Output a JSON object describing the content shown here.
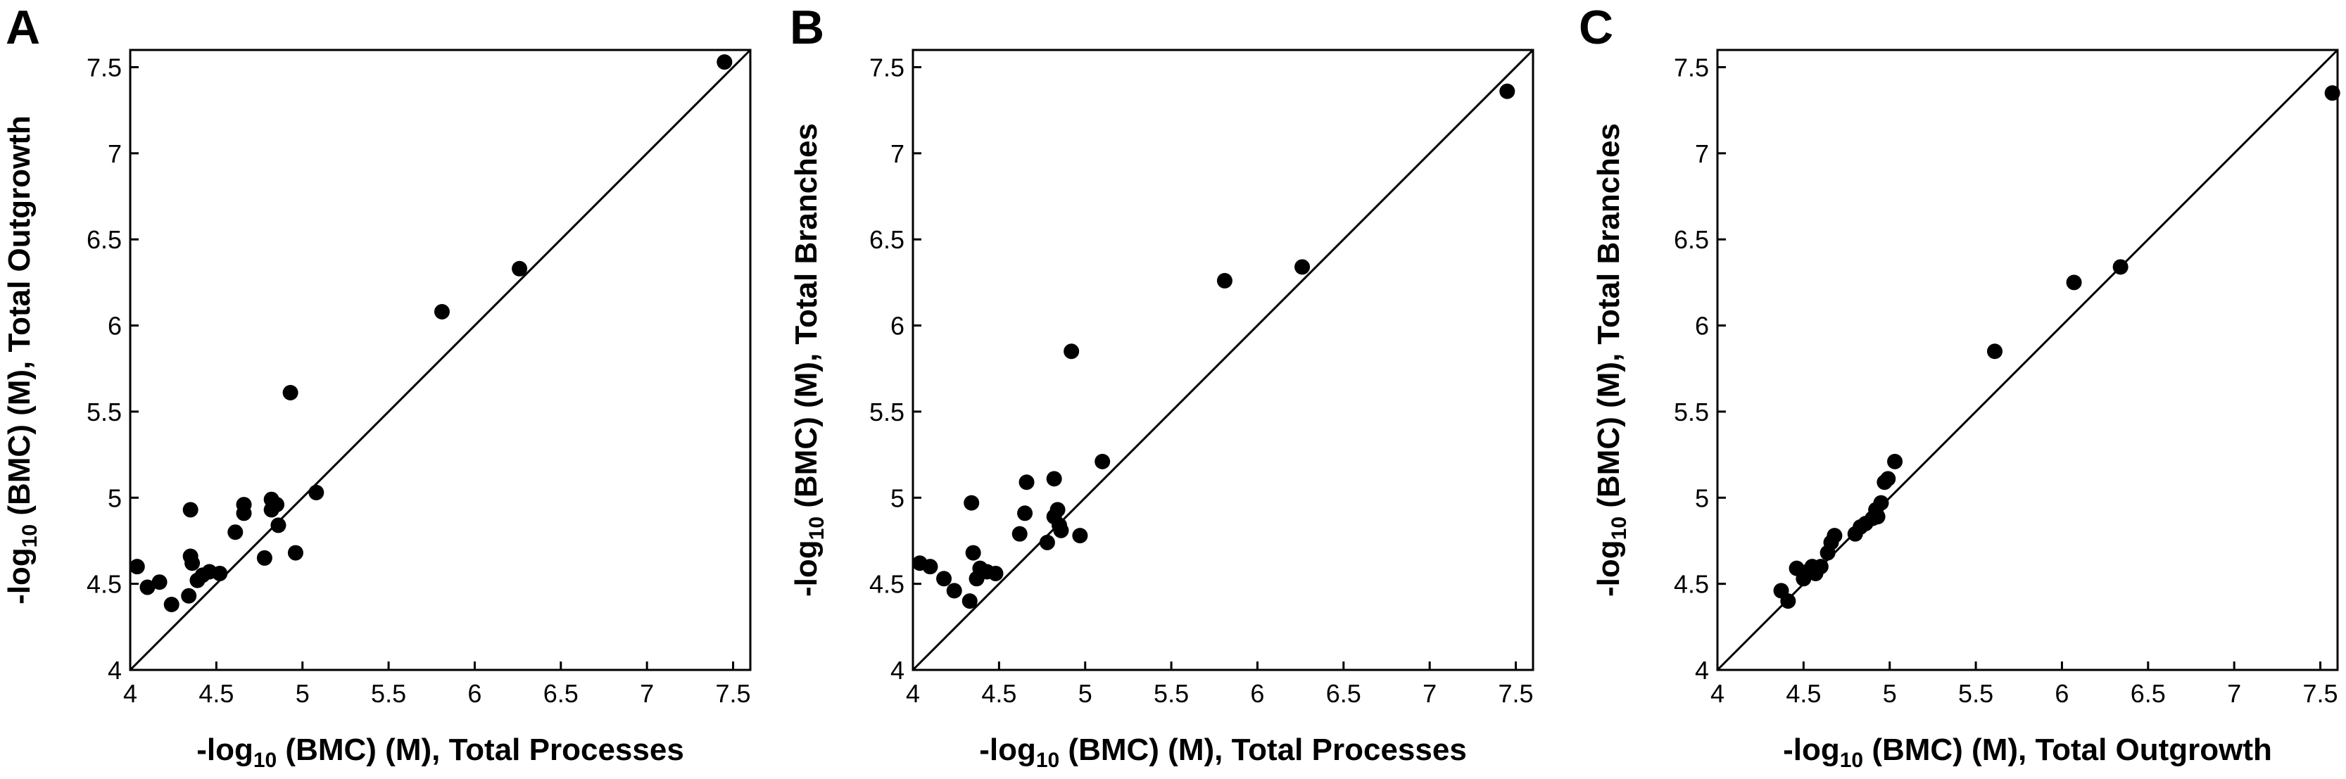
{
  "chart_data": [
    {
      "type": "scatter",
      "panel": "A",
      "xlabel_prefix": "-log",
      "xlabel_sub": "10",
      "xlabel_suffix": " (BMC) (M), Total Processes",
      "ylabel_prefix": "-log",
      "ylabel_sub": "10",
      "ylabel_suffix": " (BMC) (M), Total Outgrowth",
      "xlim": [
        4,
        7.6
      ],
      "ylim": [
        4,
        7.6
      ],
      "xticks": [
        4,
        4.5,
        5,
        5.5,
        6,
        6.5,
        7,
        7.5
      ],
      "xtick_labels": [
        "4",
        "4.5",
        "5",
        "5.5",
        "6",
        "6.5",
        "7",
        "7.5"
      ],
      "yticks": [
        4,
        4.5,
        5,
        5.5,
        6,
        6.5,
        7,
        7.5
      ],
      "ytick_labels": [
        "4",
        "4.5",
        "5",
        "5.5",
        "6",
        "6.5",
        "7",
        "7.5"
      ],
      "reference_line": "y = x",
      "grid": false,
      "points": [
        [
          4.04,
          4.6
        ],
        [
          4.1,
          4.48
        ],
        [
          4.17,
          4.51
        ],
        [
          4.24,
          4.38
        ],
        [
          4.34,
          4.43
        ],
        [
          4.35,
          4.66
        ],
        [
          4.36,
          4.62
        ],
        [
          4.35,
          4.93
        ],
        [
          4.39,
          4.52
        ],
        [
          4.42,
          4.55
        ],
        [
          4.46,
          4.57
        ],
        [
          4.52,
          4.56
        ],
        [
          4.61,
          4.8
        ],
        [
          4.66,
          4.91
        ],
        [
          4.66,
          4.96
        ],
        [
          4.78,
          4.65
        ],
        [
          4.82,
          4.93
        ],
        [
          4.82,
          4.99
        ],
        [
          4.85,
          4.96
        ],
        [
          4.86,
          4.84
        ],
        [
          4.96,
          4.68
        ],
        [
          4.93,
          5.61
        ],
        [
          5.08,
          5.03
        ],
        [
          5.81,
          6.08
        ],
        [
          6.26,
          6.33
        ],
        [
          7.45,
          7.53
        ]
      ]
    },
    {
      "type": "scatter",
      "panel": "B",
      "xlabel_prefix": "-log",
      "xlabel_sub": "10",
      "xlabel_suffix": " (BMC) (M), Total Processes",
      "ylabel_prefix": "-log",
      "ylabel_sub": "10",
      "ylabel_suffix": " (BMC) (M), Total Branches",
      "xlim": [
        4,
        7.6
      ],
      "ylim": [
        4,
        7.6
      ],
      "xticks": [
        4,
        4.5,
        5,
        5.5,
        6,
        6.5,
        7,
        7.5
      ],
      "xtick_labels": [
        "4",
        "4.5",
        "5",
        "5.5",
        "6",
        "6.5",
        "7",
        "7.5"
      ],
      "yticks": [
        4,
        4.5,
        5,
        5.5,
        6,
        6.5,
        7,
        7.5
      ],
      "ytick_labels": [
        "4",
        "4.5",
        "5",
        "5.5",
        "6",
        "6.5",
        "7",
        "7.5"
      ],
      "reference_line": "y = x",
      "grid": false,
      "points": [
        [
          4.04,
          4.62
        ],
        [
          4.1,
          4.6
        ],
        [
          4.18,
          4.53
        ],
        [
          4.24,
          4.46
        ],
        [
          4.33,
          4.4
        ],
        [
          4.34,
          4.97
        ],
        [
          4.35,
          4.68
        ],
        [
          4.37,
          4.53
        ],
        [
          4.39,
          4.59
        ],
        [
          4.43,
          4.57
        ],
        [
          4.48,
          4.56
        ],
        [
          4.62,
          4.79
        ],
        [
          4.65,
          4.91
        ],
        [
          4.66,
          5.09
        ],
        [
          4.78,
          4.74
        ],
        [
          4.82,
          4.89
        ],
        [
          4.82,
          5.11
        ],
        [
          4.84,
          4.93
        ],
        [
          4.85,
          4.84
        ],
        [
          4.86,
          4.81
        ],
        [
          4.97,
          4.78
        ],
        [
          4.92,
          5.85
        ],
        [
          5.1,
          5.21
        ],
        [
          5.81,
          6.26
        ],
        [
          6.26,
          6.34
        ],
        [
          7.45,
          7.36
        ]
      ]
    },
    {
      "type": "scatter",
      "panel": "C",
      "xlabel_prefix": "-log",
      "xlabel_sub": "10",
      "xlabel_suffix": " (BMC) (M), Total Outgrowth",
      "ylabel_prefix": "-log",
      "ylabel_sub": "10",
      "ylabel_suffix": " (BMC) (M), Total Branches",
      "xlim": [
        4,
        7.6
      ],
      "ylim": [
        4,
        7.6
      ],
      "xticks": [
        4,
        4.5,
        5,
        5.5,
        6,
        6.5,
        7,
        7.5
      ],
      "xtick_labels": [
        "4",
        "4.5",
        "5",
        "5.5",
        "6",
        "6.5",
        "7",
        "7.5"
      ],
      "yticks": [
        4,
        4.5,
        5,
        5.5,
        6,
        6.5,
        7,
        7.5
      ],
      "ytick_labels": [
        "4",
        "4.5",
        "5",
        "5.5",
        "6",
        "6.5",
        "7",
        "7.5"
      ],
      "reference_line": "y = x",
      "grid": false,
      "points": [
        [
          4.37,
          4.46
        ],
        [
          4.41,
          4.4
        ],
        [
          4.46,
          4.59
        ],
        [
          4.5,
          4.53
        ],
        [
          4.52,
          4.57
        ],
        [
          4.55,
          4.6
        ],
        [
          4.57,
          4.56
        ],
        [
          4.6,
          4.6
        ],
        [
          4.64,
          4.68
        ],
        [
          4.66,
          4.74
        ],
        [
          4.68,
          4.78
        ],
        [
          4.8,
          4.79
        ],
        [
          4.83,
          4.83
        ],
        [
          4.86,
          4.85
        ],
        [
          4.9,
          4.88
        ],
        [
          4.92,
          4.93
        ],
        [
          4.93,
          4.89
        ],
        [
          4.95,
          4.97
        ],
        [
          4.97,
          5.09
        ],
        [
          4.99,
          5.11
        ],
        [
          5.03,
          5.21
        ],
        [
          5.61,
          5.85
        ],
        [
          6.07,
          6.25
        ],
        [
          6.34,
          6.34
        ],
        [
          7.57,
          7.35
        ]
      ]
    }
  ]
}
